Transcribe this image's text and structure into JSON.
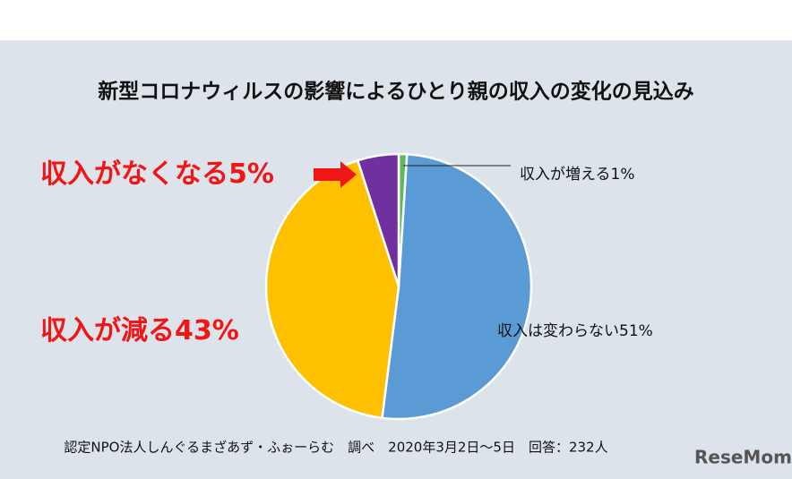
{
  "chart_data": {
    "type": "pie",
    "title": "新型コロナウィルスの影響によるひとり親の収入の変化の見込み",
    "categories": [
      "収入が増える",
      "収入は変わらない",
      "収入が減る",
      "収入がなくなる"
    ],
    "values": [
      1,
      51,
      43,
      5
    ],
    "value_labels": [
      "1%",
      "51%",
      "43%",
      "5%"
    ],
    "colors": [
      "#5fb85a",
      "#5b9bd5",
      "#ffc000",
      "#7030a0"
    ],
    "source": "認定NPO法人しんぐるまざあず・ふぉーらむ　調べ　2020年3月2日～5日　回答：232人"
  },
  "logo": "ReseMom"
}
